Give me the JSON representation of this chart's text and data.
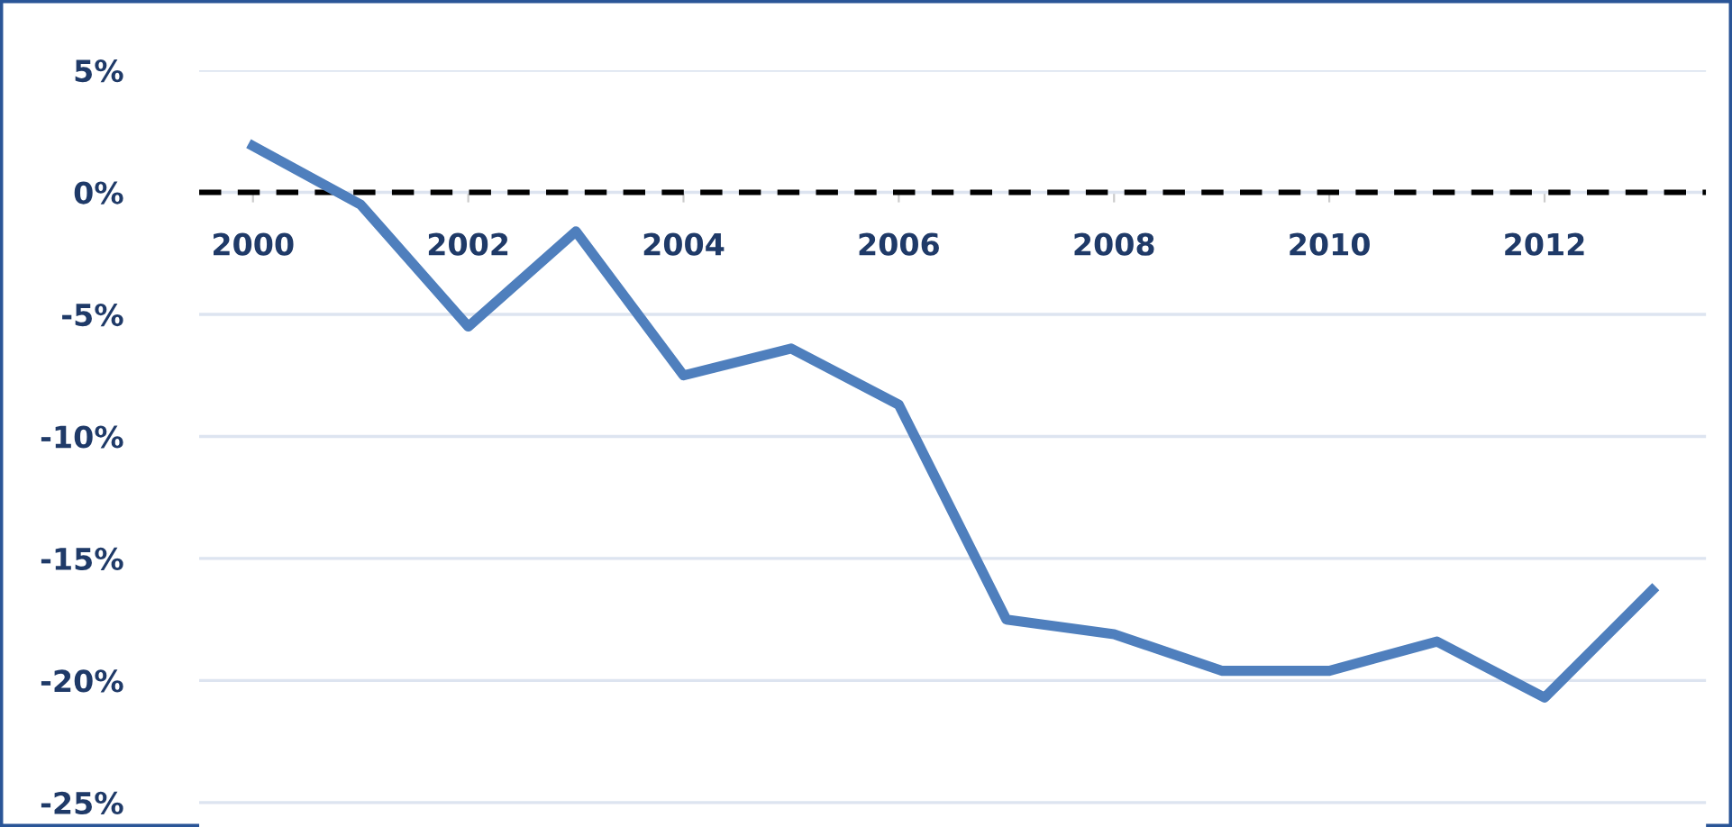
{
  "chart_data": {
    "type": "line",
    "x": [
      2000,
      2001,
      2002,
      2003,
      2004,
      2005,
      2006,
      2007,
      2008,
      2009,
      2010,
      2011,
      2012,
      2013
    ],
    "series": [
      {
        "color": "#4f7fbd",
        "values": [
          1.9,
          -0.5,
          -5.5,
          -1.6,
          -7.5,
          -6.4,
          -8.7,
          -17.5,
          -18.1,
          -19.6,
          -19.6,
          -18.4,
          -20.7,
          -16.3
        ]
      }
    ],
    "xlim": [
      1999.5,
      2013.5
    ],
    "xticks": [
      2000,
      2002,
      2004,
      2006,
      2008,
      2010,
      2012
    ],
    "ylim": [
      -26,
      5
    ],
    "yticks": [
      {
        "value": 5,
        "label": "5%"
      },
      {
        "value": 0,
        "label": "0%"
      },
      {
        "value": -5,
        "label": "-5%"
      },
      {
        "value": -10,
        "label": "-10%"
      },
      {
        "value": -15,
        "label": "-15%"
      },
      {
        "value": -20,
        "label": "-20%"
      },
      {
        "value": -25,
        "label": "-25%"
      }
    ],
    "ref_lines": [
      {
        "axis": "y",
        "value": 0,
        "color": "#000000",
        "line_style": "dashed"
      }
    ],
    "grid": "y",
    "marker": "none",
    "line_style": "solid"
  }
}
